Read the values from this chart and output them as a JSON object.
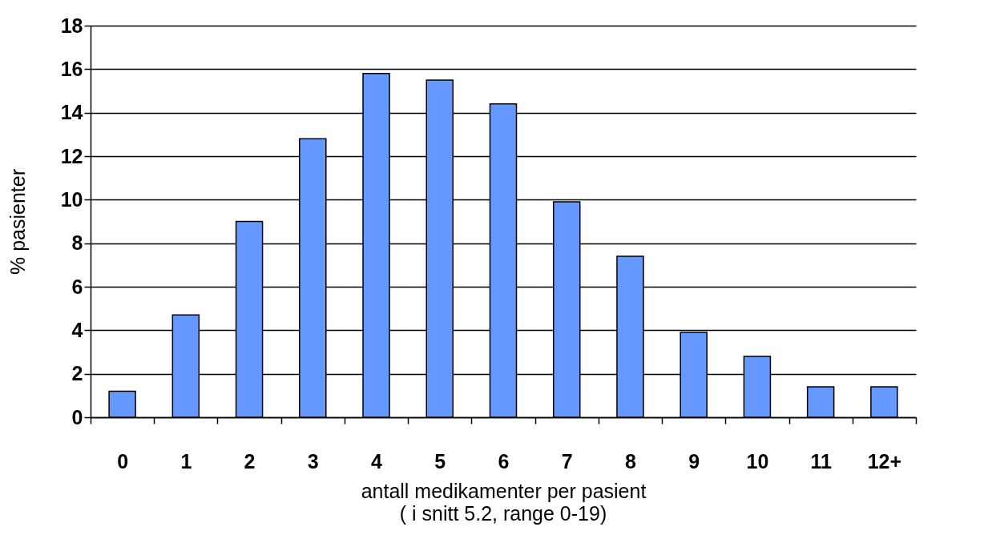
{
  "chart_data": {
    "type": "bar",
    "ylabel": "% pasienter",
    "xlabel": "antall medikamenter per pasient",
    "annotations": [
      "( i snitt 5.2, range 0-19)"
    ],
    "categories": [
      "0",
      "1",
      "2",
      "3",
      "4",
      "5",
      "6",
      "7",
      "8",
      "9",
      "10",
      "11",
      "12+"
    ],
    "values": [
      1.2,
      4.7,
      9.0,
      12.8,
      15.8,
      15.5,
      14.4,
      9.9,
      7.4,
      3.9,
      2.8,
      1.4,
      1.4
    ],
    "color": "#6699ff",
    "ylim": [
      0,
      18
    ],
    "yticks": [
      0,
      2,
      4,
      6,
      8,
      10,
      12,
      14,
      16,
      18
    ],
    "grid": "y"
  }
}
